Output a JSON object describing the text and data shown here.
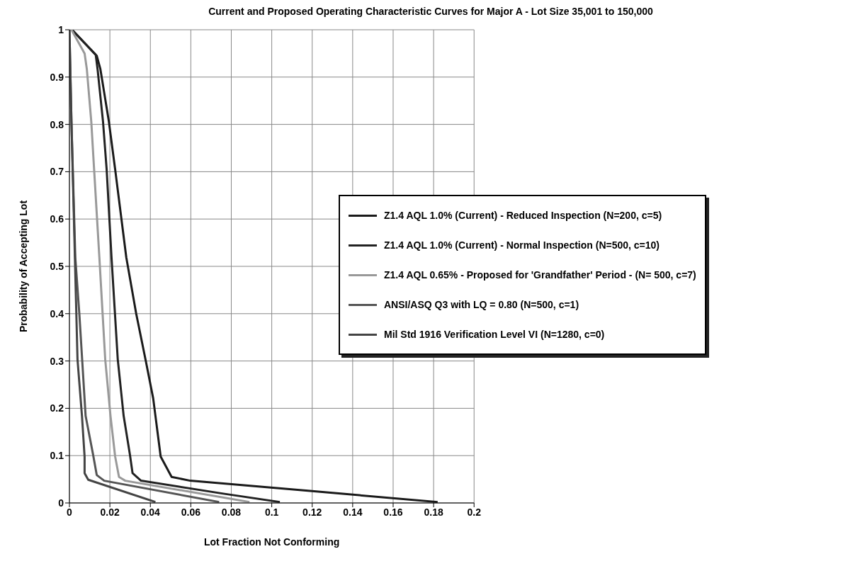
{
  "chart_data": {
    "type": "line",
    "title": "Current and Proposed Operating Characteristic Curves for Major A - Lot Size 35,001 to 150,000",
    "xlabel": "Lot  Fraction Not Conforming",
    "ylabel": "Probability of Accepting Lot",
    "xlim": [
      0,
      0.2
    ],
    "xticks": [
      0,
      0.02,
      0.04,
      0.06,
      0.08,
      0.1,
      0.12,
      0.14,
      0.16,
      0.18,
      0.2
    ],
    "ylim": [
      0,
      1
    ],
    "yticks": [
      0,
      0.1,
      0.2,
      0.3,
      0.4,
      0.5,
      0.6,
      0.7,
      0.8,
      0.9,
      1
    ],
    "grid": true,
    "legend": "right",
    "marker": "none",
    "line_style": "solid",
    "series": [
      {
        "name": "Z1.4 AQL 1.0% (Current) - Reduced Inspection (N=200, c=5)",
        "color": "#1a1a1a",
        "x": [
          0.0013,
          0.0135,
          0.0153,
          0.0195,
          0.0226,
          0.0281,
          0.033,
          0.0378,
          0.0414,
          0.0451,
          0.0505,
          0.0597,
          0.12,
          0.182
        ],
        "values": [
          1,
          0.945,
          0.917,
          0.806,
          0.705,
          0.519,
          0.4,
          0.299,
          0.221,
          0.098,
          0.055,
          0.047,
          0.025,
          0.002
        ]
      },
      {
        "name": "Z1.4 AQL 1.0% (Current) - Normal Inspection (N=500, c=10)",
        "color": "#222222",
        "x": [
          0.0013,
          0.013,
          0.0139,
          0.0166,
          0.0184,
          0.0208,
          0.0239,
          0.0268,
          0.0299,
          0.0312,
          0.0354,
          0.0755,
          0.104
        ],
        "values": [
          1,
          0.947,
          0.917,
          0.806,
          0.705,
          0.519,
          0.303,
          0.184,
          0.102,
          0.063,
          0.047,
          0.02,
          0.002
        ]
      },
      {
        "name": "Z1.4 AQL 0.65% - Proposed for 'Grandfather' Period - (N= 500, c=7)",
        "color": "#999999",
        "x": [
          0.001,
          0.0075,
          0.0086,
          0.0108,
          0.0122,
          0.0148,
          0.0177,
          0.0203,
          0.0226,
          0.0245,
          0.0276,
          0.089
        ],
        "values": [
          1,
          0.95,
          0.917,
          0.806,
          0.705,
          0.519,
          0.303,
          0.184,
          0.098,
          0.055,
          0.047,
          0.002
        ]
      },
      {
        "name": "ANSI/ASQ Q3 with LQ = 0.80 (N=500, c=1)",
        "color": "#555555",
        "x": [
          0,
          0.001,
          0.0029,
          0.0049,
          0.008,
          0.0117,
          0.0135,
          0.0172,
          0.074
        ],
        "values": [
          1,
          0.806,
          0.519,
          0.4,
          0.184,
          0.102,
          0.059,
          0.047,
          0.002
        ]
      },
      {
        "name": "Mil Std 1916 Verification Level VI (N=1280, c=0)",
        "color": "#444444",
        "x": [
          0,
          0.001,
          0.0027,
          0.004,
          0.0062,
          0.0075,
          0.0075,
          0.0093,
          0.0425
        ],
        "values": [
          1,
          0.806,
          0.519,
          0.303,
          0.184,
          0.098,
          0.063,
          0.049,
          0.002
        ]
      }
    ]
  }
}
